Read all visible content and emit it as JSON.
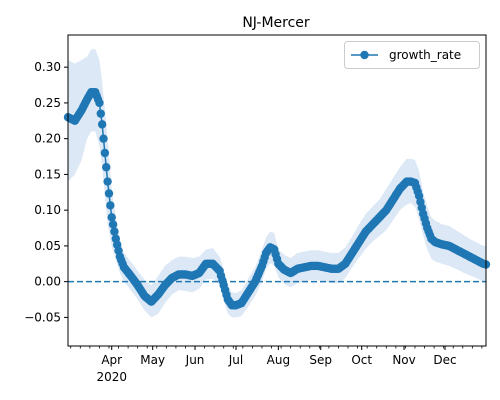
{
  "chart_data": {
    "type": "line",
    "title": "NJ-Mercer",
    "xlabel": "",
    "ylabel": "",
    "x_range": [
      "2020-02-29",
      "2020-12-31"
    ],
    "ylim": [
      -0.09,
      0.345
    ],
    "grid": false,
    "legend_position": "top-right",
    "y_ticks": [
      -0.05,
      0.0,
      0.05,
      0.1,
      0.15,
      0.2,
      0.25,
      0.3
    ],
    "y_tick_labels": [
      "−0.05",
      "0.00",
      "0.05",
      "0.10",
      "0.15",
      "0.20",
      "0.25",
      "0.30"
    ],
    "x_tick_labels": [
      {
        "date": "2020-04-01",
        "label": "Apr",
        "sublabel": "2020"
      },
      {
        "date": "2020-05-01",
        "label": "May"
      },
      {
        "date": "2020-06-01",
        "label": "Jun"
      },
      {
        "date": "2020-07-01",
        "label": "Jul"
      },
      {
        "date": "2020-08-01",
        "label": "Aug"
      },
      {
        "date": "2020-09-01",
        "label": "Sep"
      },
      {
        "date": "2020-10-01",
        "label": "Oct"
      },
      {
        "date": "2020-11-01",
        "label": "Nov"
      },
      {
        "date": "2020-12-01",
        "label": "Dec"
      }
    ],
    "reference_line": {
      "y": 0.0,
      "style": "dashed",
      "color": "#1f77b4"
    },
    "series": [
      {
        "name": "growth_rate",
        "color": "#1f77b4",
        "marker": "circle",
        "band_color": "#dce8f5",
        "x": [
          "2020-02-29",
          "2020-03-05",
          "2020-03-10",
          "2020-03-14",
          "2020-03-17",
          "2020-03-20",
          "2020-03-23",
          "2020-03-25",
          "2020-03-27",
          "2020-03-29",
          "2020-04-01",
          "2020-04-04",
          "2020-04-07",
          "2020-04-10",
          "2020-04-15",
          "2020-04-20",
          "2020-04-25",
          "2020-04-30",
          "2020-05-05",
          "2020-05-10",
          "2020-05-15",
          "2020-05-20",
          "2020-05-25",
          "2020-05-30",
          "2020-06-04",
          "2020-06-09",
          "2020-06-14",
          "2020-06-19",
          "2020-06-22",
          "2020-06-25",
          "2020-06-28",
          "2020-07-01",
          "2020-07-05",
          "2020-07-10",
          "2020-07-15",
          "2020-07-20",
          "2020-07-23",
          "2020-07-26",
          "2020-07-29",
          "2020-08-01",
          "2020-08-05",
          "2020-08-10",
          "2020-08-15",
          "2020-08-20",
          "2020-08-25",
          "2020-08-30",
          "2020-09-04",
          "2020-09-09",
          "2020-09-14",
          "2020-09-19",
          "2020-09-24",
          "2020-09-29",
          "2020-10-04",
          "2020-10-09",
          "2020-10-14",
          "2020-10-19",
          "2020-10-24",
          "2020-10-29",
          "2020-11-03",
          "2020-11-06",
          "2020-11-09",
          "2020-11-12",
          "2020-11-15",
          "2020-11-18",
          "2020-11-21",
          "2020-11-24",
          "2020-11-29",
          "2020-12-04",
          "2020-12-09",
          "2020-12-14",
          "2020-12-19",
          "2020-12-24",
          "2020-12-29",
          "2020-12-31"
        ],
        "y": [
          0.23,
          0.225,
          0.24,
          0.255,
          0.265,
          0.265,
          0.25,
          0.22,
          0.18,
          0.14,
          0.09,
          0.06,
          0.035,
          0.02,
          0.008,
          -0.005,
          -0.02,
          -0.028,
          -0.018,
          -0.005,
          0.005,
          0.01,
          0.01,
          0.008,
          0.012,
          0.025,
          0.025,
          0.015,
          -0.005,
          -0.025,
          -0.033,
          -0.033,
          -0.03,
          -0.015,
          0.0,
          0.022,
          0.04,
          0.048,
          0.045,
          0.025,
          0.017,
          0.012,
          0.018,
          0.02,
          0.022,
          0.022,
          0.02,
          0.018,
          0.018,
          0.025,
          0.04,
          0.055,
          0.07,
          0.08,
          0.09,
          0.1,
          0.115,
          0.13,
          0.14,
          0.14,
          0.138,
          0.12,
          0.095,
          0.075,
          0.06,
          0.055,
          0.052,
          0.05,
          0.045,
          0.04,
          0.035,
          0.03,
          0.025,
          0.024
        ],
        "lower": [
          0.14,
          0.15,
          0.17,
          0.2,
          0.21,
          0.21,
          0.19,
          0.16,
          0.12,
          0.08,
          0.05,
          0.03,
          0.012,
          0.0,
          -0.012,
          -0.025,
          -0.04,
          -0.05,
          -0.045,
          -0.03,
          -0.018,
          -0.012,
          -0.013,
          -0.015,
          -0.01,
          0.003,
          0.004,
          -0.005,
          -0.025,
          -0.045,
          -0.05,
          -0.05,
          -0.048,
          -0.035,
          -0.02,
          0.0,
          0.018,
          0.026,
          0.022,
          0.006,
          -0.003,
          -0.008,
          -0.002,
          0.0,
          0.002,
          0.002,
          0.0,
          -0.002,
          -0.002,
          0.005,
          0.02,
          0.033,
          0.046,
          0.056,
          0.064,
          0.072,
          0.086,
          0.1,
          0.108,
          0.11,
          0.105,
          0.087,
          0.065,
          0.045,
          0.032,
          0.028,
          0.025,
          0.022,
          0.018,
          0.013,
          0.009,
          0.005,
          0.0,
          -0.002
        ],
        "upper": [
          0.31,
          0.305,
          0.31,
          0.315,
          0.325,
          0.325,
          0.31,
          0.28,
          0.24,
          0.2,
          0.13,
          0.09,
          0.06,
          0.04,
          0.028,
          0.015,
          0.003,
          -0.005,
          0.008,
          0.022,
          0.03,
          0.035,
          0.035,
          0.033,
          0.035,
          0.045,
          0.047,
          0.035,
          0.018,
          -0.005,
          -0.015,
          -0.016,
          -0.012,
          0.005,
          0.02,
          0.045,
          0.062,
          0.07,
          0.068,
          0.045,
          0.038,
          0.033,
          0.04,
          0.042,
          0.044,
          0.044,
          0.042,
          0.04,
          0.04,
          0.048,
          0.063,
          0.08,
          0.095,
          0.105,
          0.115,
          0.13,
          0.145,
          0.16,
          0.172,
          0.172,
          0.17,
          0.155,
          0.125,
          0.105,
          0.09,
          0.085,
          0.08,
          0.078,
          0.072,
          0.066,
          0.06,
          0.055,
          0.05,
          0.05
        ]
      }
    ]
  }
}
